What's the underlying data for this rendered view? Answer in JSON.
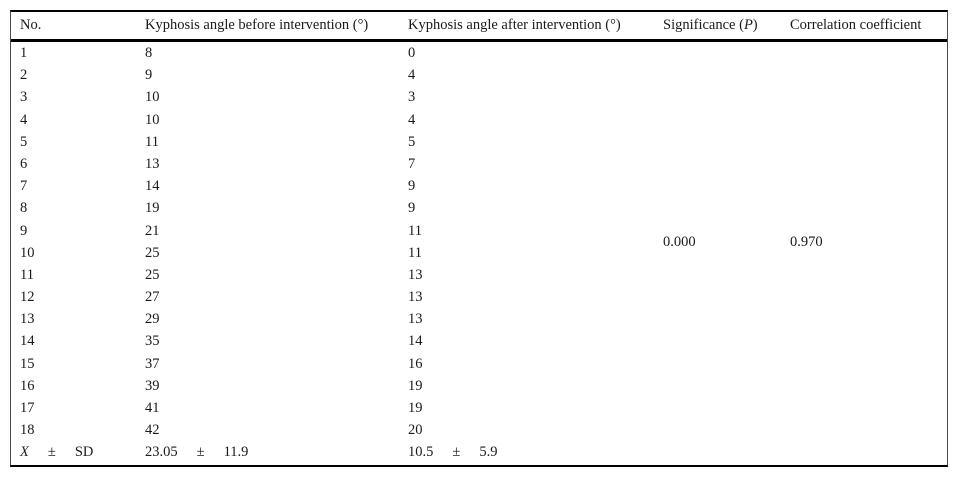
{
  "page": {
    "background": "#ffffff",
    "text_color": "#1a1a1a",
    "rule_color": "#000000"
  },
  "table": {
    "headers": {
      "no": "No.",
      "before": "Kyphosis angle before intervention (°)",
      "after": "Kyphosis angle after intervention (°)",
      "significance_prefix": "Significance (",
      "significance_p": "P",
      "significance_suffix": ")",
      "correlation": "Correlation coefficient"
    },
    "rows": [
      {
        "no": "1",
        "before": "8",
        "after": "0"
      },
      {
        "no": "2",
        "before": "9",
        "after": "4"
      },
      {
        "no": "3",
        "before": "10",
        "after": "3"
      },
      {
        "no": "4",
        "before": "10",
        "after": "4"
      },
      {
        "no": "5",
        "before": "11",
        "after": "5"
      },
      {
        "no": "6",
        "before": "13",
        "after": "7"
      },
      {
        "no": "7",
        "before": "14",
        "after": "9"
      },
      {
        "no": "8",
        "before": "19",
        "after": "9"
      },
      {
        "no": "9",
        "before": "21",
        "after": "11"
      },
      {
        "no": "10",
        "before": "25",
        "after": "11"
      },
      {
        "no": "11",
        "before": "25",
        "after": "13"
      },
      {
        "no": "12",
        "before": "27",
        "after": "13"
      },
      {
        "no": "13",
        "before": "29",
        "after": "13"
      },
      {
        "no": "14",
        "before": "35",
        "after": "14"
      },
      {
        "no": "15",
        "before": "37",
        "after": "16"
      },
      {
        "no": "16",
        "before": "39",
        "after": "19"
      },
      {
        "no": "17",
        "before": "41",
        "after": "19"
      },
      {
        "no": "18",
        "before": "42",
        "after": "20"
      }
    ],
    "significance_value": "0.000",
    "correlation_value": "0.970",
    "summary": {
      "label_x": "X",
      "label_pm": "±",
      "label_sd": "SD",
      "before_mean": "23.05",
      "before_pm": "±",
      "before_sd": "11.9",
      "after_mean": "10.5",
      "after_pm": "±",
      "after_sd": "5.9"
    }
  }
}
